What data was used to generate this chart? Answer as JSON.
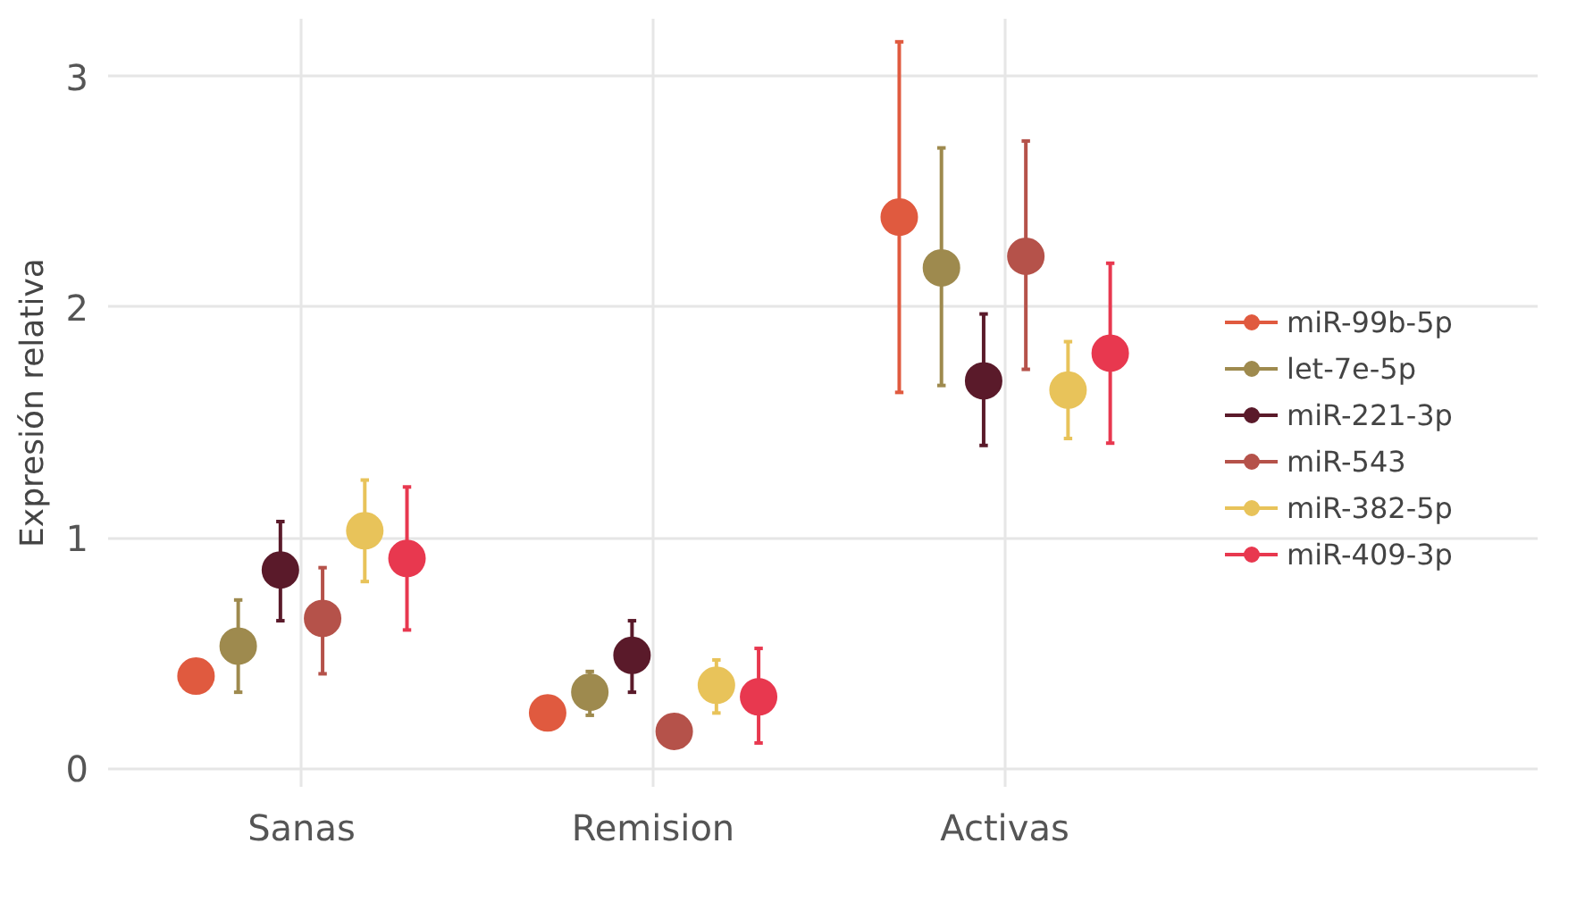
{
  "chart_data": {
    "type": "scatter",
    "ylabel": "Expresión relativa",
    "categories": [
      "Sanas",
      "Remision",
      "Activas"
    ],
    "ylim": [
      -0.08,
      3.25
    ],
    "yticks": [
      0,
      1,
      2,
      3
    ],
    "grid": true,
    "legend": "right",
    "marker": "circle",
    "series": [
      {
        "name": "miR-99b-5p",
        "color": "#e05a3f",
        "values": [
          0.4,
          0.24,
          2.39
        ],
        "errors": [
          null,
          null,
          [
            1.63,
            3.15
          ]
        ]
      },
      {
        "name": "let-7e-5p",
        "color": "#9e8a4e",
        "values": [
          0.53,
          0.33,
          2.17
        ],
        "errors": [
          [
            0.33,
            0.73
          ],
          [
            0.23,
            0.42
          ],
          [
            1.66,
            2.69
          ]
        ]
      },
      {
        "name": "miR-221-3p",
        "color": "#5a1a2a",
        "values": [
          0.86,
          0.49,
          1.68
        ],
        "errors": [
          [
            0.64,
            1.07
          ],
          [
            0.33,
            0.64
          ],
          [
            1.4,
            1.97
          ]
        ]
      },
      {
        "name": "miR-543",
        "color": "#b5524a",
        "values": [
          0.65,
          0.16,
          2.22
        ],
        "errors": [
          [
            0.41,
            0.87
          ],
          null,
          [
            1.73,
            2.72
          ]
        ]
      },
      {
        "name": "miR-382-5p",
        "color": "#e8c35a",
        "values": [
          1.03,
          0.36,
          1.64
        ],
        "errors": [
          [
            0.81,
            1.25
          ],
          [
            0.24,
            0.47
          ],
          [
            1.43,
            1.85
          ]
        ]
      },
      {
        "name": "miR-409-3p",
        "color": "#e8384f",
        "values": [
          0.91,
          0.31,
          1.8
        ],
        "errors": [
          [
            0.6,
            1.22
          ],
          [
            0.11,
            0.52
          ],
          [
            1.41,
            2.19
          ]
        ]
      }
    ]
  }
}
